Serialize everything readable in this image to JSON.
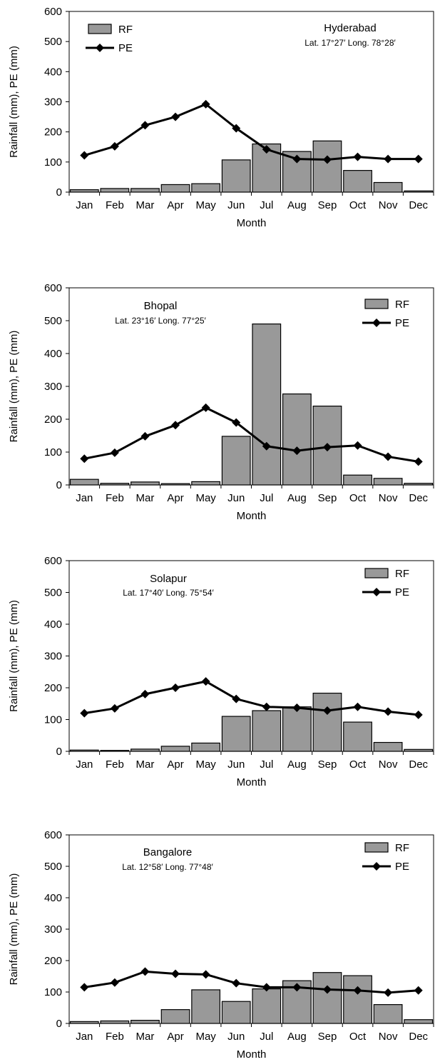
{
  "chart_data": [
    {
      "type": "bar",
      "categories": [
        "Jan",
        "Feb",
        "Mar",
        "Apr",
        "May",
        "Jun",
        "Jul",
        "Aug",
        "Sep",
        "Oct",
        "Nov",
        "Dec"
      ],
      "series": [
        {
          "name": "RF",
          "type": "bar",
          "values": [
            8,
            12,
            12,
            25,
            28,
            107,
            160,
            135,
            170,
            72,
            32,
            4
          ]
        },
        {
          "name": "PE",
          "type": "line",
          "values": [
            122,
            152,
            222,
            250,
            292,
            212,
            142,
            110,
            108,
            117,
            110,
            110
          ]
        }
      ],
      "title": "Hyderabad",
      "subtitle": "Lat. 17°27′ Long. 78°28′",
      "xlabel": "Month",
      "ylabel": "Rainfall (mm), PE (mm)",
      "ylim": [
        0,
        600
      ],
      "yticks": [
        0,
        100,
        200,
        300,
        400,
        500,
        600
      ],
      "legend_position": "top-left",
      "annotation_position": "top-right",
      "grid": false,
      "colors": {
        "bar": "#999999",
        "line": "#000000"
      }
    },
    {
      "type": "bar",
      "categories": [
        "Jan",
        "Feb",
        "Mar",
        "Apr",
        "May",
        "Jun",
        "Jul",
        "Aug",
        "Sep",
        "Oct",
        "Nov",
        "Dec"
      ],
      "series": [
        {
          "name": "RF",
          "type": "bar",
          "values": [
            17,
            5,
            9,
            4,
            10,
            148,
            490,
            277,
            240,
            30,
            20,
            5
          ]
        },
        {
          "name": "PE",
          "type": "line",
          "values": [
            80,
            98,
            148,
            182,
            235,
            190,
            118,
            104,
            115,
            120,
            86,
            71
          ]
        }
      ],
      "title": "Bhopal",
      "subtitle": "Lat. 23°16′ Long. 77°25′",
      "xlabel": "Month",
      "ylabel": "Rainfall (mm), PE (mm)",
      "ylim": [
        0,
        600
      ],
      "yticks": [
        0,
        100,
        200,
        300,
        400,
        500,
        600
      ],
      "legend_position": "top-right",
      "annotation_position": "top-left",
      "grid": false,
      "colors": {
        "bar": "#999999",
        "line": "#000000"
      }
    },
    {
      "type": "bar",
      "categories": [
        "Jan",
        "Feb",
        "Mar",
        "Apr",
        "May",
        "Jun",
        "Jul",
        "Aug",
        "Sep",
        "Oct",
        "Nov",
        "Dec"
      ],
      "series": [
        {
          "name": "RF",
          "type": "bar",
          "values": [
            4,
            3,
            7,
            16,
            26,
            110,
            128,
            140,
            183,
            92,
            28,
            6
          ]
        },
        {
          "name": "PE",
          "type": "line",
          "values": [
            120,
            135,
            180,
            200,
            220,
            165,
            140,
            137,
            128,
            140,
            125,
            115
          ]
        }
      ],
      "title": "Solapur",
      "subtitle": "Lat. 17°40′ Long. 75°54′",
      "xlabel": "Month",
      "ylabel": "Rainfall (mm), PE (mm)",
      "ylim": [
        0,
        600
      ],
      "yticks": [
        0,
        100,
        200,
        300,
        400,
        500,
        600
      ],
      "legend_position": "top-right",
      "annotation_position": "top-left",
      "grid": false,
      "colors": {
        "bar": "#999999",
        "line": "#000000"
      }
    },
    {
      "type": "bar",
      "categories": [
        "Jan",
        "Feb",
        "Mar",
        "Apr",
        "May",
        "Jun",
        "Jul",
        "Aug",
        "Sep",
        "Oct",
        "Nov",
        "Dec"
      ],
      "series": [
        {
          "name": "RF",
          "type": "bar",
          "values": [
            6,
            8,
            10,
            44,
            107,
            70,
            110,
            136,
            162,
            152,
            60,
            12
          ]
        },
        {
          "name": "PE",
          "type": "line",
          "values": [
            115,
            130,
            165,
            158,
            156,
            128,
            115,
            115,
            108,
            105,
            98,
            105
          ]
        }
      ],
      "title": "Bangalore",
      "subtitle": "Lat. 12°58′ Long. 77°48′",
      "xlabel": "Month",
      "ylabel": "Rainfall (mm), PE (mm)",
      "ylim": [
        0,
        600
      ],
      "yticks": [
        0,
        100,
        200,
        300,
        400,
        500,
        600
      ],
      "legend_position": "top-right",
      "annotation_position": "top-left",
      "grid": false,
      "colors": {
        "bar": "#999999",
        "line": "#000000"
      }
    }
  ]
}
